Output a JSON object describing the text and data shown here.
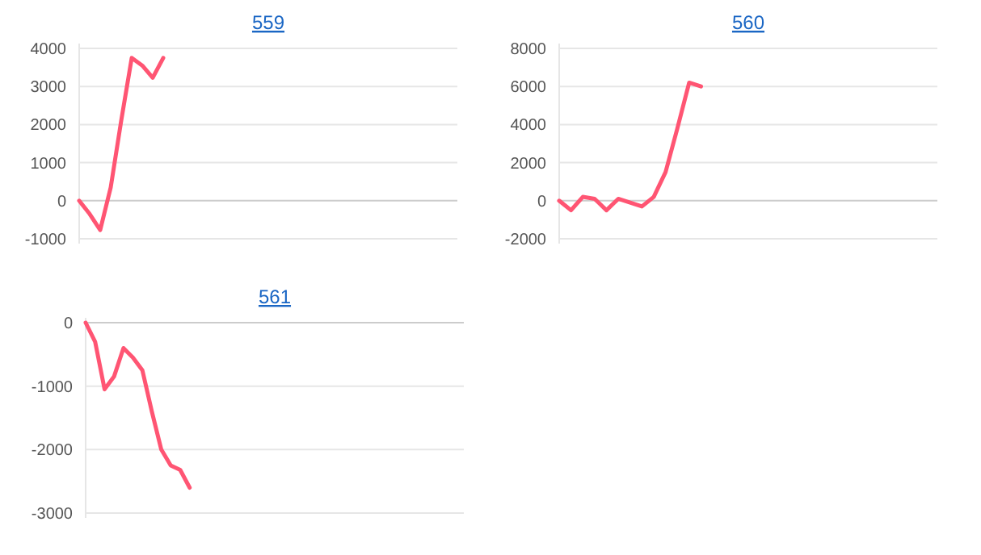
{
  "chart_data": [
    {
      "type": "line",
      "title": "559",
      "categories": [
        null,
        null,
        null,
        null,
        null,
        null,
        null,
        null,
        null,
        null,
        null,
        null,
        null,
        null,
        null,
        null,
        null,
        null,
        null,
        null,
        null,
        null,
        null,
        null,
        null,
        null,
        null,
        null,
        null,
        null,
        null,
        null,
        null,
        null,
        null,
        null,
        null
      ],
      "series": [
        {
          "color": "#ff5573",
          "values": [
            0,
            -350,
            -770,
            350,
            2100,
            3750,
            3550,
            3230,
            3750,
            null,
            null,
            null,
            null,
            null,
            null,
            null,
            null,
            null,
            null,
            null,
            null,
            null,
            null,
            null,
            null,
            null,
            null,
            null,
            null,
            null,
            null,
            null,
            null,
            null,
            null,
            null,
            null
          ]
        }
      ],
      "ylim": [
        -1000,
        4000
      ],
      "yticks": [
        -1000,
        0,
        1000,
        2000,
        3000,
        4000
      ],
      "grid": "y",
      "marker": "none",
      "line_style": "solid"
    },
    {
      "type": "line",
      "title": "560",
      "categories": [
        null,
        null,
        null,
        null,
        null,
        null,
        null,
        null,
        null,
        null,
        null,
        null,
        null,
        null,
        null,
        null,
        null,
        null,
        null,
        null,
        null,
        null,
        null,
        null,
        null,
        null,
        null,
        null,
        null,
        null,
        null,
        null,
        null
      ],
      "series": [
        {
          "color": "#ff5573",
          "values": [
            0,
            -500,
            200,
            100,
            -500,
            100,
            -100,
            -300,
            200,
            1500,
            3800,
            6200,
            6000,
            null,
            null,
            null,
            null,
            null,
            null,
            null,
            null,
            null,
            null,
            null,
            null,
            null,
            null,
            null,
            null,
            null,
            null,
            null,
            null
          ]
        }
      ],
      "ylim": [
        -2000,
        8000
      ],
      "yticks": [
        -2000,
        0,
        2000,
        4000,
        6000,
        8000
      ],
      "grid": "y",
      "marker": "none",
      "line_style": "solid"
    },
    {
      "type": "line",
      "title": "561",
      "categories": [
        null,
        null,
        null,
        null,
        null,
        null,
        null,
        null,
        null,
        null,
        null,
        null,
        null,
        null,
        null,
        null,
        null,
        null,
        null,
        null,
        null,
        null,
        null,
        null,
        null,
        null,
        null,
        null,
        null,
        null,
        null,
        null,
        null,
        null,
        null,
        null,
        null,
        null,
        null,
        null,
        null
      ],
      "series": [
        {
          "color": "#ff5573",
          "values": [
            0,
            -300,
            -1050,
            -850,
            -400,
            -550,
            -750,
            -1400,
            -2000,
            -2250,
            -2320,
            -2600,
            null,
            null,
            null,
            null,
            null,
            null,
            null,
            null,
            null,
            null,
            null,
            null,
            null,
            null,
            null,
            null,
            null,
            null,
            null,
            null,
            null,
            null,
            null,
            null,
            null,
            null,
            null,
            null,
            null
          ]
        }
      ],
      "ylim": [
        -3000,
        0
      ],
      "yticks": [
        -3000,
        -2000,
        -1000,
        0
      ],
      "grid": "y",
      "marker": "none",
      "line_style": "solid"
    }
  ]
}
